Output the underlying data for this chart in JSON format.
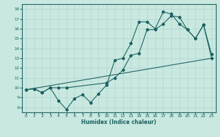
{
  "bg_color": "#c8e8e0",
  "grid_color": "#b0d4cc",
  "line_color": "#1a6060",
  "xlabel": "Humidex (Indice chaleur)",
  "xlim": [
    -0.5,
    23.5
  ],
  "ylim": [
    7.5,
    18.5
  ],
  "xticks": [
    0,
    1,
    2,
    3,
    4,
    5,
    6,
    7,
    8,
    9,
    10,
    11,
    12,
    13,
    14,
    15,
    16,
    17,
    18,
    19,
    20,
    21,
    22,
    23
  ],
  "yticks": [
    8,
    9,
    10,
    11,
    12,
    13,
    14,
    15,
    16,
    17,
    18
  ],
  "line1_jagged": {
    "x": [
      0,
      1,
      2,
      3,
      4,
      5,
      6,
      7,
      8,
      9,
      10,
      11,
      12,
      13,
      14,
      15,
      16,
      17,
      18,
      19,
      20,
      21,
      22,
      23
    ],
    "y": [
      9.8,
      9.9,
      9.5,
      10.0,
      8.7,
      7.8,
      8.9,
      9.3,
      8.5,
      9.4,
      10.3,
      12.8,
      13.0,
      14.5,
      16.7,
      16.7,
      16.0,
      17.7,
      17.5,
      16.5,
      15.9,
      15.0,
      16.4,
      13.4
    ]
  },
  "line2_straight": {
    "x": [
      0,
      23
    ],
    "y": [
      9.8,
      13.0
    ]
  },
  "line3_upper": {
    "x": [
      0,
      1,
      2,
      3,
      4,
      5,
      10,
      11,
      12,
      13,
      14,
      15,
      16,
      17,
      18,
      19,
      20,
      21,
      22,
      23
    ],
    "y": [
      9.8,
      9.9,
      9.5,
      10.0,
      10.0,
      10.0,
      10.5,
      11.0,
      11.8,
      13.3,
      13.5,
      15.9,
      15.9,
      16.5,
      17.3,
      17.2,
      15.9,
      15.0,
      16.4,
      13.0
    ]
  }
}
